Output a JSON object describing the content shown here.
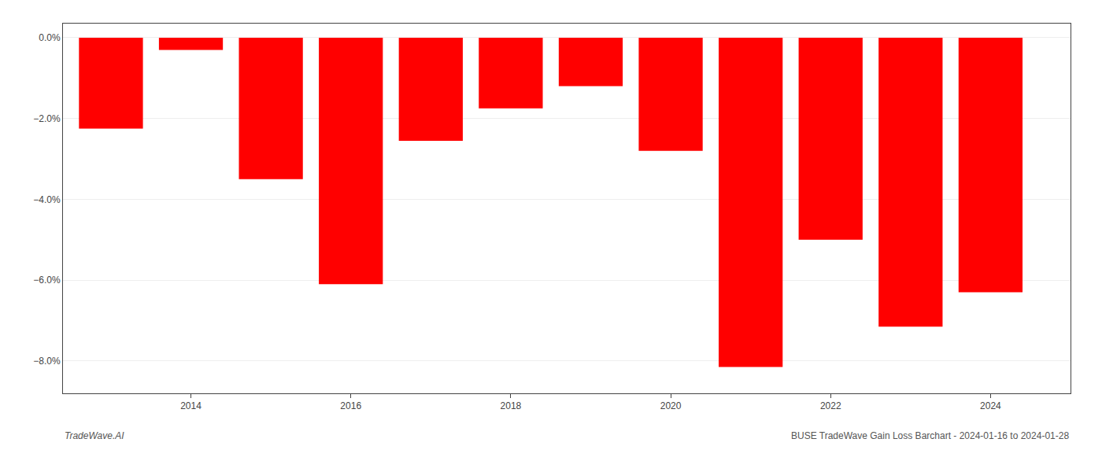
{
  "chart_data": {
    "type": "bar",
    "x": [
      2013,
      2014,
      2015,
      2016,
      2017,
      2018,
      2019,
      2020,
      2021,
      2022,
      2023,
      2024
    ],
    "values": [
      -2.25,
      -0.3,
      -3.5,
      -6.1,
      -2.55,
      -1.75,
      -1.2,
      -2.8,
      -8.15,
      -5.0,
      -7.15,
      -6.3
    ],
    "color": "#ff0000",
    "xlim": [
      2012.4,
      2025.0
    ],
    "xticks": [
      2014,
      2016,
      2018,
      2020,
      2022,
      2024
    ],
    "ylim": [
      -8.8,
      0.35
    ],
    "yticks": [
      {
        "value": 0.0,
        "label": "0.0%"
      },
      {
        "value": -2.0,
        "label": "−2.0%"
      },
      {
        "value": -4.0,
        "label": "−4.0%"
      },
      {
        "value": -6.0,
        "label": "−6.0%"
      },
      {
        "value": -8.0,
        "label": "−8.0%"
      }
    ],
    "grid": true,
    "annotations": [
      "TradeWave.AI",
      "BUSE TradeWave Gain Loss Barchart - 2024-01-16 to 2024-01-28"
    ]
  }
}
